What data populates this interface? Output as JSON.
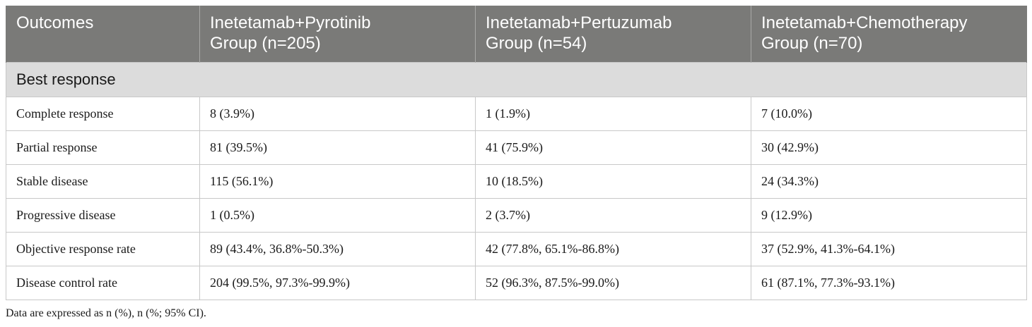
{
  "table": {
    "headers": [
      [
        "Outcomes"
      ],
      [
        "Inetetamab+Pyrotinib",
        "Group (n=205)"
      ],
      [
        "Inetetamab+Pertuzumab",
        "Group (n=54)"
      ],
      [
        "Inetetamab+Chemotherapy",
        "Group (n=70)"
      ]
    ],
    "section_label": "Best response",
    "rows": [
      [
        "Complete response",
        "8 (3.9%)",
        "1 (1.9%)",
        "7 (10.0%)"
      ],
      [
        "Partial response",
        "81 (39.5%)",
        "41 (75.9%)",
        "30 (42.9%)"
      ],
      [
        "Stable disease",
        "115 (56.1%)",
        "10 (18.5%)",
        "24 (34.3%)"
      ],
      [
        "Progressive disease",
        "1 (0.5%)",
        "2 (3.7%)",
        "9 (12.9%)"
      ],
      [
        "Objective response rate",
        "89 (43.4%, 36.8%-50.3%)",
        "42 (77.8%, 65.1%-86.8%)",
        "37 (52.9%, 41.3%-64.1%)"
      ],
      [
        "Disease control rate",
        "204 (99.5%, 97.3%-99.9%)",
        "52 (96.3%, 87.5%-99.0%)",
        "61 (87.1%, 77.3%-93.1%)"
      ]
    ]
  },
  "footnote": "Data are expressed as n (%), n (%; 95% CI)."
}
